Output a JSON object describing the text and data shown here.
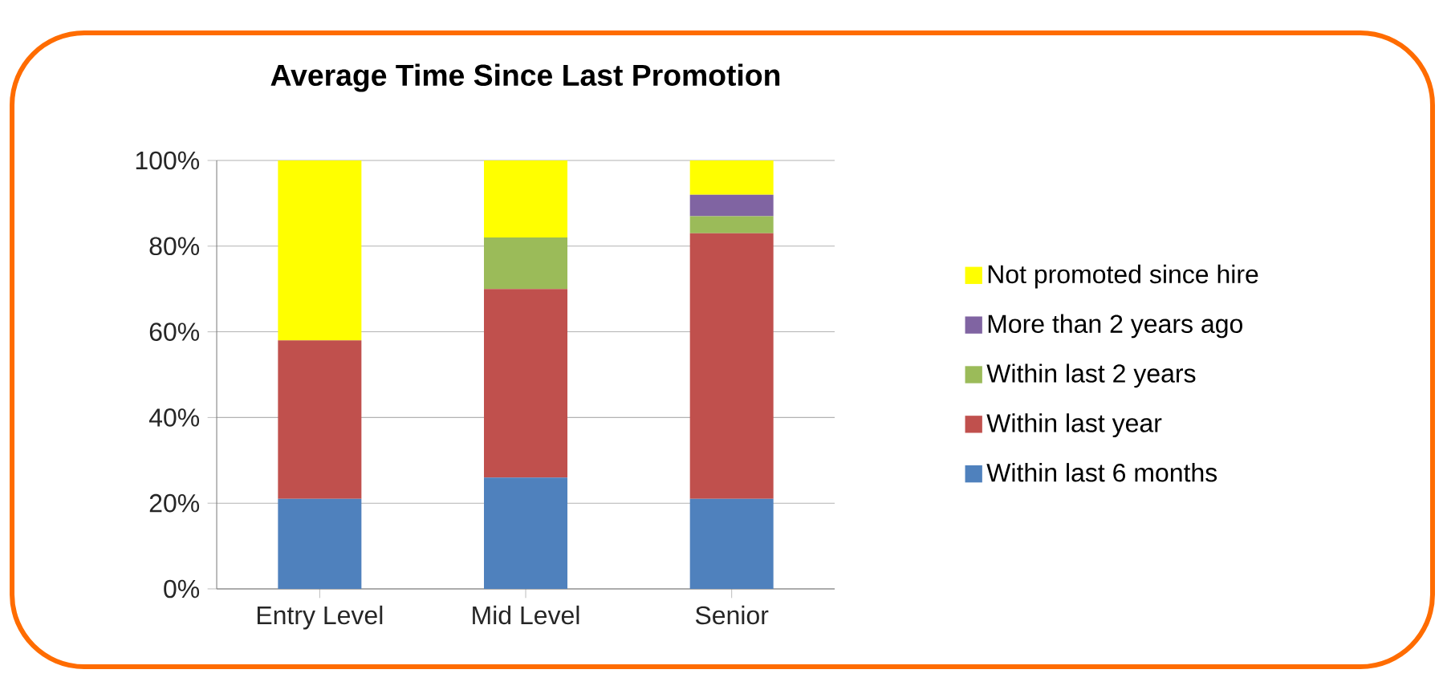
{
  "chart_data": {
    "type": "bar",
    "title": "Average Time Since Last Promotion",
    "stacked": true,
    "categories": [
      "Entry Level",
      "Mid Level",
      "Senior"
    ],
    "series": [
      {
        "name": "Within last 6 months",
        "color": "#4f81bd",
        "values": [
          21,
          26,
          21
        ]
      },
      {
        "name": "Within last year",
        "color": "#c0504d",
        "values": [
          37,
          44,
          62
        ]
      },
      {
        "name": "Within last 2 years",
        "color": "#9bbb59",
        "values": [
          0,
          12,
          4
        ]
      },
      {
        "name": "More than 2 years ago",
        "color": "#8064a2",
        "values": [
          0,
          0,
          5
        ]
      },
      {
        "name": "Not promoted since hire",
        "color": "#ffff00",
        "values": [
          42,
          18,
          8
        ]
      }
    ],
    "ylim": [
      0,
      100
    ],
    "yticks": [
      {
        "value": 0,
        "label": "0%"
      },
      {
        "value": 20,
        "label": "20%"
      },
      {
        "value": 40,
        "label": "40%"
      },
      {
        "value": 60,
        "label": "60%"
      },
      {
        "value": 80,
        "label": "80%"
      },
      {
        "value": 100,
        "label": "100%"
      }
    ],
    "grid": "y",
    "legend": "right"
  }
}
